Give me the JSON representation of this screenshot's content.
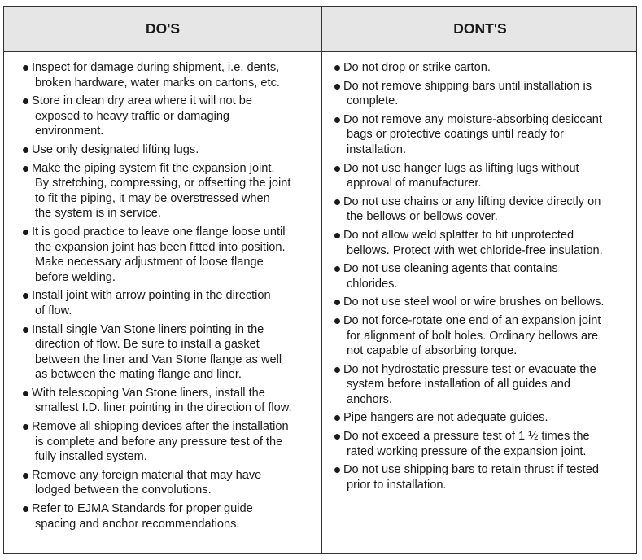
{
  "headers": {
    "dos": "DO'S",
    "donts": "DONT'S"
  },
  "dos": [
    [
      "Inspect for damage during shipment, i.e. dents,",
      "broken hardware, water marks on cartons, etc."
    ],
    [
      "Store in clean dry area where it will not be",
      "exposed to heavy traffic or damaging",
      "environment."
    ],
    [
      "Use only designated lifting lugs."
    ],
    [
      "Make the piping system fit the expansion joint.",
      "By stretching, compressing, or offsetting the joint",
      "to fit the piping, it  may be overstressed  when",
      "the system is in service."
    ],
    [
      "It is good practice to leave one flange loose until",
      "the expansion joint has been fitted into position.",
      "Make necessary adjustment of loose flange",
      "before welding."
    ],
    [
      "Install joint with arrow pointing in the direction",
      "of flow."
    ],
    [
      "Install single Van Stone liners pointing in the",
      "direction of flow. Be sure to install a gasket",
      "between the liner and Van Stone flange as well",
      "as between the mating flange and liner."
    ],
    [
      "With telescoping Van Stone liners, install the",
      "smallest I.D. liner pointing in the direction of flow."
    ],
    [
      "Remove all shipping devices after the installation",
      "is complete and before any pressure test of the",
      "fully installed system."
    ],
    [
      "Remove any foreign material that may have",
      "lodged between the convolutions."
    ],
    [
      "Refer to EJMA Standards for proper guide",
      "spacing and anchor recommendations."
    ]
  ],
  "donts": [
    [
      "Do not drop or strike carton."
    ],
    [
      "Do not remove shipping bars until installation is",
      "complete."
    ],
    [
      "Do not remove any moisture-absorbing desiccant",
      "bags or protective coatings until ready for",
      "installation."
    ],
    [
      "Do not use hanger lugs as lifting lugs without",
      "approval of manufacturer."
    ],
    [
      "Do not use chains or any lifting device directly on",
      "the bellows or bellows cover."
    ],
    [
      "Do not allow weld splatter to hit unprotected",
      "bellows. Protect with wet chloride-free insulation."
    ],
    [
      "Do not use cleaning agents that contains",
      "chlorides."
    ],
    [
      "Do not use steel wool or wire brushes on bellows."
    ],
    [
      "Do not force-rotate one end of an expansion joint",
      "for alignment of bolt holes. Ordinary bellows are",
      "not capable of absorbing torque."
    ],
    [
      "Do not hydrostatic pressure test or evacuate the",
      "system before installation of all guides and",
      "anchors."
    ],
    [
      "Pipe hangers are not adequate guides."
    ],
    [
      "Do not exceed a pressure test of 1 ½ times the",
      "rated working pressure of the expansion joint."
    ],
    [
      "Do not use shipping bars to retain thrust if tested",
      "prior to installation."
    ]
  ]
}
